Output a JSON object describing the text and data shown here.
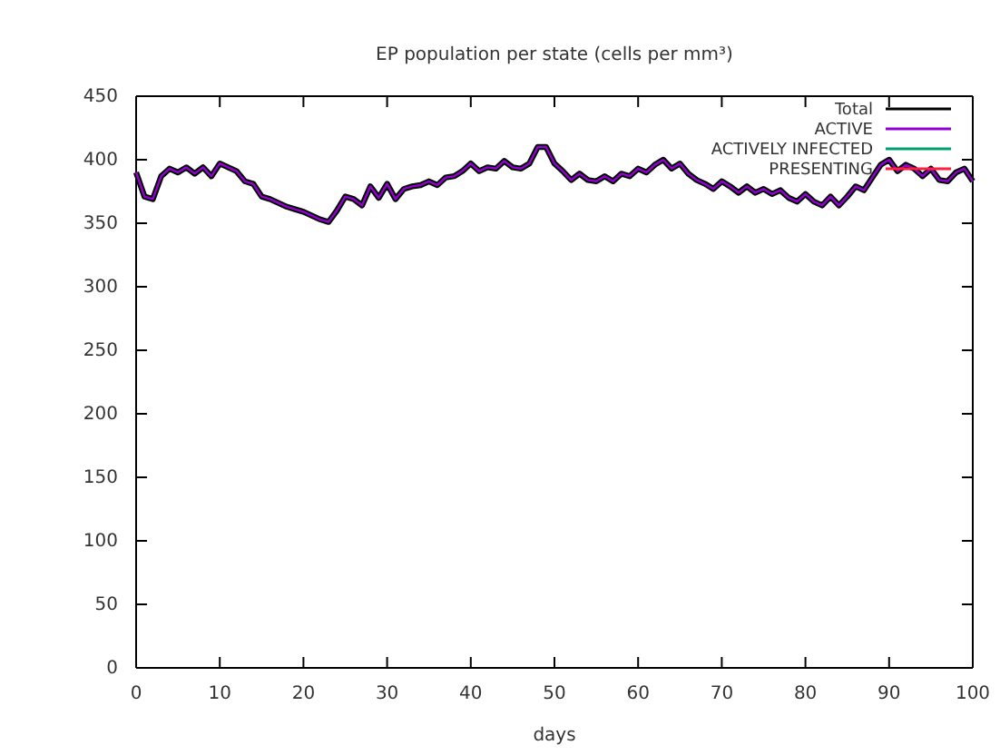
{
  "chart_data": {
    "type": "line",
    "title": "EP population per state (cells per mm³)",
    "xlabel": "days",
    "x": [
      0,
      1,
      2,
      3,
      4,
      5,
      6,
      7,
      8,
      9,
      10,
      11,
      12,
      13,
      14,
      15,
      16,
      17,
      18,
      19,
      20,
      21,
      22,
      23,
      24,
      25,
      26,
      27,
      28,
      29,
      30,
      31,
      32,
      33,
      34,
      35,
      36,
      37,
      38,
      39,
      40,
      41,
      42,
      43,
      44,
      45,
      46,
      47,
      48,
      49,
      50,
      51,
      52,
      53,
      54,
      55,
      56,
      57,
      58,
      59,
      60,
      61,
      62,
      63,
      64,
      65,
      66,
      67,
      68,
      69,
      70,
      71,
      72,
      73,
      74,
      75,
      76,
      77,
      78,
      79,
      80,
      81,
      82,
      83,
      84,
      85,
      86,
      87,
      88,
      89,
      90,
      91,
      92,
      93,
      94,
      95,
      96,
      97,
      98,
      99,
      100
    ],
    "series": [
      {
        "name": "Total",
        "color": "#000000",
        "values": [
          390,
          371,
          369,
          387,
          393,
          390,
          394,
          389,
          394,
          387,
          397,
          394,
          391,
          383,
          381,
          371,
          369,
          366,
          363,
          361,
          359,
          356,
          353,
          351,
          360,
          371,
          369,
          364,
          379,
          370,
          381,
          369,
          377,
          379,
          380,
          383,
          380,
          386,
          387,
          391,
          397,
          391,
          394,
          393,
          399,
          394,
          393,
          397,
          410,
          410,
          397,
          391,
          384,
          389,
          384,
          383,
          387,
          383,
          389,
          387,
          393,
          390,
          396,
          400,
          393,
          397,
          389,
          384,
          381,
          377,
          383,
          379,
          374,
          379,
          374,
          377,
          373,
          376,
          370,
          367,
          373,
          367,
          364,
          371,
          364,
          371,
          379,
          376,
          386,
          396,
          400,
          391,
          396,
          393,
          387,
          393,
          384,
          383,
          390,
          393,
          383
        ]
      },
      {
        "name": "ACTIVE",
        "color": "#9400d3",
        "values": [
          390,
          371,
          369,
          387,
          393,
          390,
          394,
          389,
          394,
          387,
          397,
          394,
          391,
          383,
          381,
          371,
          369,
          366,
          363,
          361,
          359,
          356,
          353,
          351,
          360,
          371,
          369,
          364,
          379,
          370,
          381,
          369,
          377,
          379,
          380,
          383,
          380,
          386,
          387,
          391,
          397,
          391,
          394,
          393,
          399,
          394,
          393,
          397,
          410,
          410,
          397,
          391,
          384,
          389,
          384,
          383,
          387,
          383,
          389,
          387,
          393,
          390,
          396,
          400,
          393,
          397,
          389,
          384,
          381,
          377,
          383,
          379,
          374,
          379,
          374,
          377,
          373,
          376,
          370,
          367,
          373,
          367,
          364,
          371,
          364,
          371,
          379,
          376,
          386,
          396,
          400,
          391,
          396,
          393,
          387,
          393,
          384,
          383,
          390,
          393,
          383
        ]
      },
      {
        "name": "ACTIVELY INFECTED",
        "color": "#009e73",
        "values": [
          null,
          null,
          null,
          null,
          null,
          null,
          null,
          null,
          null,
          null,
          null,
          null,
          null,
          null,
          null,
          null,
          null,
          null,
          null,
          null,
          null,
          null,
          null,
          null,
          null,
          null,
          null,
          null,
          null,
          null,
          null,
          null,
          null,
          null,
          null,
          null,
          null,
          null,
          null,
          null,
          null,
          null,
          null,
          null,
          null,
          null,
          null,
          null,
          null,
          null,
          null,
          null,
          null,
          null,
          null,
          null,
          null,
          null,
          null,
          null,
          null,
          null,
          null,
          null,
          null,
          null,
          null,
          null,
          null,
          null,
          null,
          null,
          null,
          null,
          null,
          null,
          null,
          null,
          null,
          null,
          null,
          null,
          null,
          null,
          null,
          null,
          null,
          null,
          null,
          null,
          null,
          null,
          null,
          null,
          null,
          null,
          null,
          null,
          null,
          null,
          null
        ]
      },
      {
        "name": "PRESENTING",
        "color": "#ff2040",
        "values": [
          null,
          null,
          null,
          null,
          null,
          null,
          null,
          null,
          null,
          null,
          null,
          null,
          null,
          null,
          null,
          null,
          null,
          null,
          null,
          null,
          null,
          null,
          null,
          null,
          null,
          null,
          null,
          null,
          null,
          null,
          null,
          null,
          null,
          null,
          null,
          null,
          null,
          null,
          null,
          null,
          null,
          null,
          null,
          null,
          null,
          null,
          null,
          null,
          null,
          null,
          null,
          null,
          null,
          null,
          null,
          null,
          null,
          null,
          null,
          null,
          null,
          null,
          null,
          null,
          null,
          null,
          null,
          null,
          null,
          null,
          null,
          null,
          null,
          null,
          null,
          null,
          null,
          null,
          null,
          null,
          null,
          null,
          null,
          null,
          null,
          null,
          null,
          null,
          null,
          null,
          null,
          null,
          null,
          null,
          null,
          null,
          null,
          null,
          null,
          null,
          null
        ]
      }
    ],
    "xlim": [
      0,
      100
    ],
    "xticks": [
      0,
      10,
      20,
      30,
      40,
      50,
      60,
      70,
      80,
      90,
      100
    ],
    "ylim": [
      0,
      450
    ],
    "yticks": [
      0,
      50,
      100,
      150,
      200,
      250,
      300,
      350,
      400,
      450
    ],
    "legend": "top right",
    "grid": false
  }
}
